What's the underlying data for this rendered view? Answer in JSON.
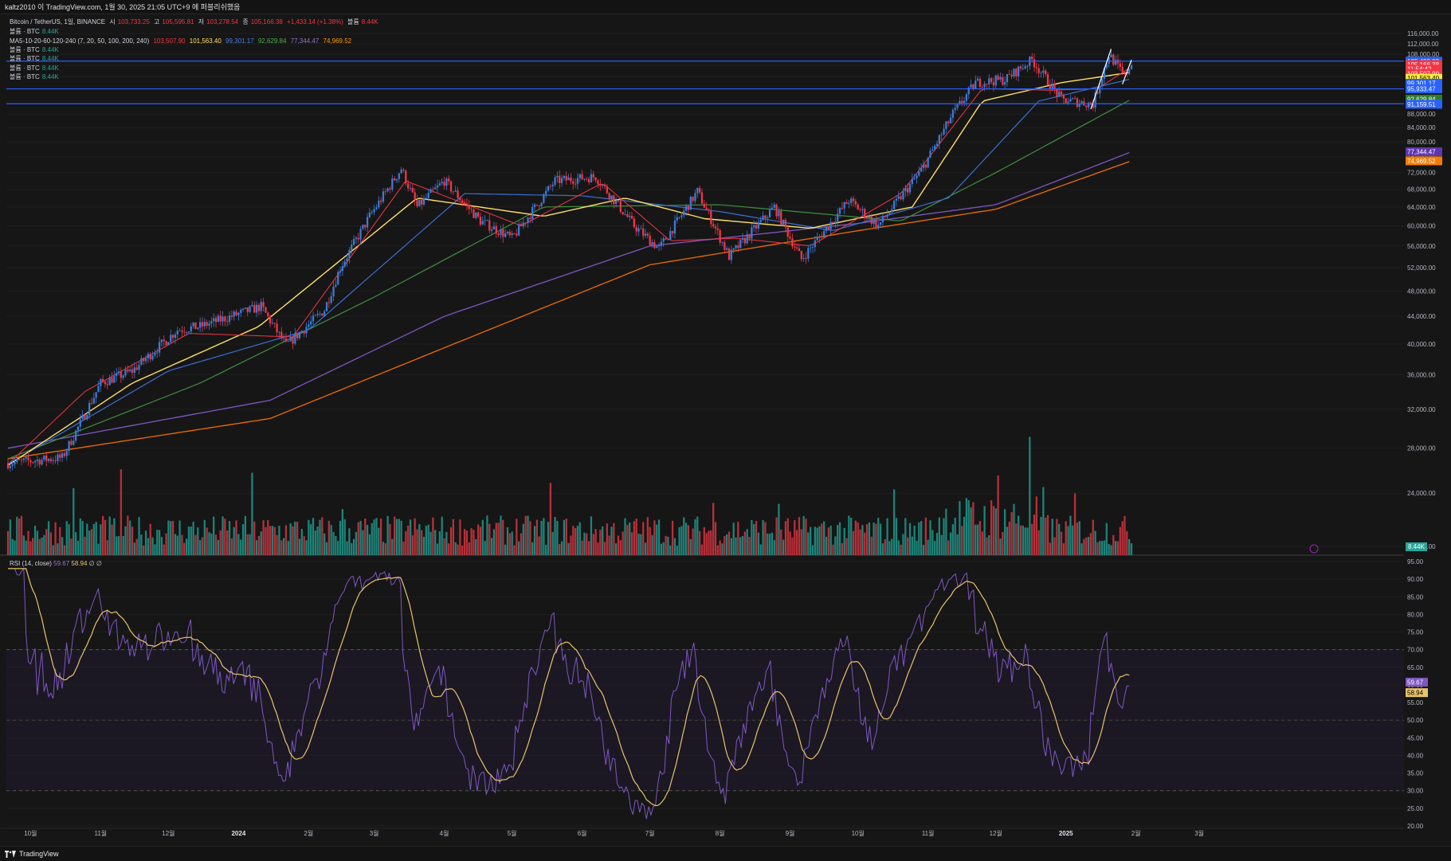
{
  "header": {
    "published": "kaltz2010 이 TradingView.com, 1월 30, 2025 21:05 UTC+9 에 퍼블리쉬했음"
  },
  "legend": {
    "symbol": "Bitcoin / TetherUS, 1일, BINANCE",
    "o_label": "시",
    "o": "103,733.25",
    "h_label": "고",
    "h": "105,595.81",
    "l_label": "저",
    "l": "103,278.54",
    "c_label": "종",
    "c": "105,166.38",
    "chg": "+1,433.14 (+1.38%)",
    "vol_label": "볼륨",
    "vol": "8.44K",
    "vol_line": "볼륨 · BTC",
    "vol_value": "8.44K",
    "ma_title": "MA5-10-20-60-120-240 (7, 20, 50, 100, 200, 240)",
    "ma_values": [
      "103,507.90",
      "101,563.40",
      "99,301.17",
      "92,629.84",
      "77,344.47",
      "74,969.52"
    ]
  },
  "rsi": {
    "title": "RSI (14, close)",
    "v1": "59.67",
    "v2": "58.94",
    "sym": "∅ ∅",
    "badge1": "59.67",
    "badge2": "58.94"
  },
  "price_axis": {
    "ticks": [
      "116,000.00",
      "112,000.00",
      "108,000.00",
      "104,000.00",
      "100,000.00",
      "96,000.00",
      "92,000.00",
      "88,000.00",
      "84,000.00",
      "80,000.00",
      "76,000.00",
      "72,000.00",
      "68,000.00",
      "64,000.00",
      "60,000.00",
      "56,000.00",
      "52,000.00",
      "48,000.00",
      "44,000.00",
      "40,000.00",
      "36,000.00",
      "32,000.00",
      "28,000.00",
      "24,000.00",
      "20,000.00"
    ],
    "badges": [
      {
        "text": "105,498.83",
        "color": "#2962ff",
        "price": 105498.83
      },
      {
        "text": "105,166.38",
        "color": "#f23645",
        "price": 104300
      },
      {
        "text": "11:54:42",
        "color": "#f23645",
        "price": 102700
      },
      {
        "text": "103,507.90",
        "color": "#f23645",
        "price": 101100
      },
      {
        "text": "101,563.40",
        "color": "#ffeb3b",
        "price": 99500
      },
      {
        "text": "99,301.17",
        "color": "#2962ff",
        "price": 97800
      },
      {
        "text": "95,933.47",
        "color": "#2962ff",
        "price": 95933.47
      },
      {
        "text": "92,629.84",
        "color": "#2e7d32",
        "price": 92629.84
      },
      {
        "text": "91,159.51",
        "color": "#2962ff",
        "price": 91000
      },
      {
        "text": "77,344.47",
        "color": "#5e35b1",
        "price": 77344.47
      },
      {
        "text": "74,969.52",
        "color": "#f57c00",
        "price": 74969.52
      }
    ],
    "horizontal_levels": [
      105498.83,
      95933.47,
      91159.51
    ]
  },
  "rsi_axis": {
    "ticks": [
      "95.00",
      "90.00",
      "85.00",
      "80.00",
      "75.00",
      "70.00",
      "65.00",
      "60.00",
      "55.00",
      "50.00",
      "45.00",
      "40.00",
      "35.00",
      "30.00",
      "25.00",
      "20.00"
    ]
  },
  "time_axis": [
    "10월",
    "11월",
    "12월",
    "2024",
    "2월",
    "3월",
    "4월",
    "5월",
    "6월",
    "7월",
    "8월",
    "9월",
    "10월",
    "11월",
    "12월",
    "2025",
    "2월",
    "3월"
  ],
  "vol_badge": "8.44K",
  "footer": {
    "brand": "TradingView"
  },
  "colors": {
    "up": "#26a69a",
    "down": "#f23645",
    "ma7": "#f23645",
    "ma20": "#ffe066",
    "ma50": "#3b6fd4",
    "ma100": "#3f8f3f",
    "ma200": "#7e57c2",
    "ma240": "#ef6c00",
    "rsi": "#7e57c2",
    "rsi_ma": "#e8c36a"
  },
  "chart_data": {
    "type": "candlestick",
    "title": "Bitcoin / TetherUS, 1일, BINANCE",
    "x_range": [
      "2023-09-21",
      "2025-01-30"
    ],
    "y_range": [
      20000,
      118000
    ],
    "scale": "log",
    "series": [
      {
        "name": "BTC/USDT close",
        "points": [
          [
            "2023-09-21",
            26600
          ],
          [
            "2023-10-15",
            27100
          ],
          [
            "2023-10-23",
            30500
          ],
          [
            "2023-11-01",
            35000
          ],
          [
            "2023-11-15",
            36500
          ],
          [
            "2023-12-05",
            42000
          ],
          [
            "2023-12-15",
            42500
          ],
          [
            "2024-01-11",
            45500
          ],
          [
            "2024-01-22",
            39800
          ],
          [
            "2024-02-08",
            45000
          ],
          [
            "2024-02-15",
            52000
          ],
          [
            "2024-02-28",
            62000
          ],
          [
            "2024-03-13",
            73000
          ],
          [
            "2024-03-20",
            64000
          ],
          [
            "2024-04-01",
            70000
          ],
          [
            "2024-04-17",
            61000
          ],
          [
            "2024-05-01",
            57500
          ],
          [
            "2024-05-20",
            70000
          ],
          [
            "2024-06-07",
            71000
          ],
          [
            "2024-06-24",
            60000
          ],
          [
            "2024-07-05",
            55500
          ],
          [
            "2024-07-22",
            67500
          ],
          [
            "2024-08-05",
            54000
          ],
          [
            "2024-08-25",
            64000
          ],
          [
            "2024-09-06",
            53500
          ],
          [
            "2024-09-27",
            65500
          ],
          [
            "2024-10-10",
            60000
          ],
          [
            "2024-10-29",
            72500
          ],
          [
            "2024-11-12",
            88000
          ],
          [
            "2024-11-22",
            98000
          ],
          [
            "2024-12-05",
            99000
          ],
          [
            "2024-12-17",
            106000
          ],
          [
            "2024-12-30",
            92500
          ],
          [
            "2025-01-13",
            91000
          ],
          [
            "2025-01-20",
            108000
          ],
          [
            "2025-01-27",
            100000
          ],
          [
            "2025-01-30",
            105166
          ]
        ]
      },
      {
        "name": "MA7",
        "points": [
          [
            "2023-09-21",
            26500
          ],
          [
            "2023-10-25",
            34000
          ],
          [
            "2023-12-10",
            41500
          ],
          [
            "2024-01-25",
            41000
          ],
          [
            "2024-03-15",
            70000
          ],
          [
            "2024-05-05",
            60000
          ],
          [
            "2024-06-10",
            69500
          ],
          [
            "2024-07-10",
            57000
          ],
          [
            "2024-08-08",
            57500
          ],
          [
            "2024-09-10",
            56000
          ],
          [
            "2024-10-20",
            67000
          ],
          [
            "2024-11-25",
            96000
          ],
          [
            "2024-12-25",
            95500
          ],
          [
            "2025-01-15",
            96000
          ],
          [
            "2025-01-30",
            103508
          ]
        ]
      },
      {
        "name": "MA20",
        "points": [
          [
            "2023-09-21",
            26400
          ],
          [
            "2023-11-15",
            35000
          ],
          [
            "2024-01-10",
            42500
          ],
          [
            "2024-03-20",
            66000
          ],
          [
            "2024-05-15",
            62000
          ],
          [
            "2024-06-20",
            66000
          ],
          [
            "2024-07-25",
            61500
          ],
          [
            "2024-09-10",
            59500
          ],
          [
            "2024-10-25",
            64000
          ],
          [
            "2024-11-25",
            92000
          ],
          [
            "2024-12-30",
            98000
          ],
          [
            "2025-01-30",
            101563
          ]
        ]
      },
      {
        "name": "MA50",
        "points": [
          [
            "2023-09-21",
            26500
          ],
          [
            "2023-12-01",
            36500
          ],
          [
            "2024-02-01",
            42000
          ],
          [
            "2024-04-10",
            67000
          ],
          [
            "2024-06-01",
            66500
          ],
          [
            "2024-08-01",
            63000
          ],
          [
            "2024-09-20",
            59000
          ],
          [
            "2024-11-10",
            66000
          ],
          [
            "2024-12-20",
            92000
          ],
          [
            "2025-01-30",
            99301
          ]
        ]
      },
      {
        "name": "MA100",
        "points": [
          [
            "2023-09-21",
            27000
          ],
          [
            "2023-12-15",
            35000
          ],
          [
            "2024-03-01",
            47000
          ],
          [
            "2024-05-15",
            64000
          ],
          [
            "2024-08-01",
            64500
          ],
          [
            "2024-10-20",
            61000
          ],
          [
            "2024-12-01",
            72000
          ],
          [
            "2025-01-30",
            92630
          ]
        ]
      },
      {
        "name": "MA200",
        "points": [
          [
            "2023-09-21",
            28000
          ],
          [
            "2024-01-15",
            33000
          ],
          [
            "2024-04-01",
            44000
          ],
          [
            "2024-07-01",
            56000
          ],
          [
            "2024-10-01",
            60500
          ],
          [
            "2024-12-01",
            64500
          ],
          [
            "2025-01-30",
            77344
          ]
        ]
      },
      {
        "name": "MA240",
        "points": [
          [
            "2023-09-21",
            27000
          ],
          [
            "2024-01-15",
            31000
          ],
          [
            "2024-04-01",
            39500
          ],
          [
            "2024-07-01",
            52500
          ],
          [
            "2024-10-01",
            59000
          ],
          [
            "2024-12-01",
            63500
          ],
          [
            "2025-01-30",
            74970
          ]
        ]
      }
    ],
    "rsi": {
      "range": [
        20,
        95
      ],
      "levels": [
        70,
        50,
        30
      ],
      "last": 59.67,
      "ma_last": 58.94
    }
  }
}
